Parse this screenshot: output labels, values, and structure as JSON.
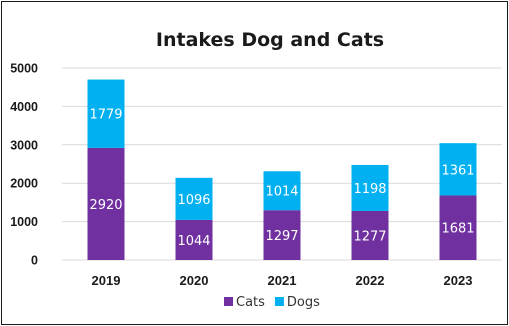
{
  "chart_data": {
    "type": "bar",
    "stacked": true,
    "title": "Intakes Dog and Cats",
    "xlabel": "",
    "ylabel": "",
    "categories": [
      "2019",
      "2020",
      "2021",
      "2022",
      "2023"
    ],
    "series": [
      {
        "name": "Cats",
        "color": "#7030a0",
        "values": [
          2920,
          1044,
          1297,
          1277,
          1681
        ]
      },
      {
        "name": "Dogs",
        "color": "#00b0f0",
        "values": [
          1779,
          1096,
          1014,
          1198,
          1361
        ]
      }
    ],
    "ylim": [
      0,
      5000
    ],
    "yticks": [
      "0",
      "1000",
      "2000",
      "3000",
      "4000",
      "5000"
    ],
    "grid": true,
    "legend": "bottom-center",
    "data_labels": true
  }
}
